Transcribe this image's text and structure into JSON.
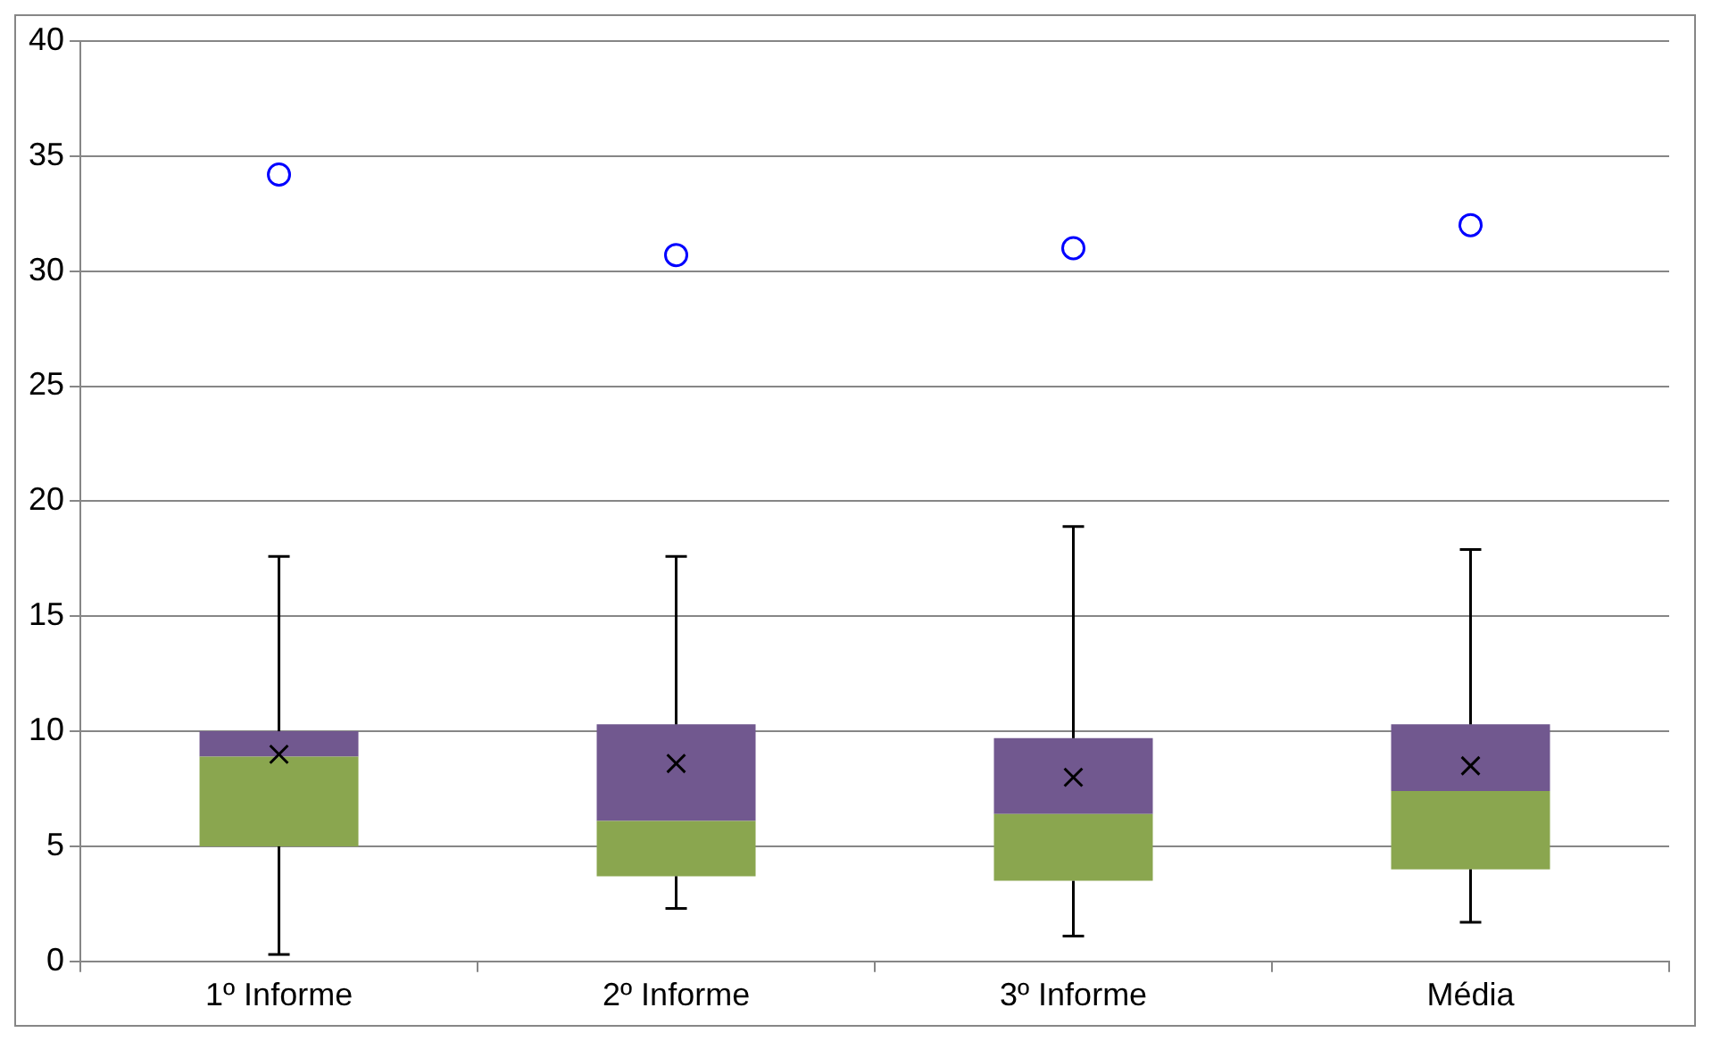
{
  "chart_data": {
    "type": "box",
    "categories": [
      "1º Informe",
      "2º Informe",
      "3º Informe",
      "Média"
    ],
    "boxes": [
      {
        "low": 0.3,
        "q1": 5.0,
        "median": 8.9,
        "q3": 10.0,
        "high": 17.6,
        "mean": 9.0
      },
      {
        "low": 2.3,
        "q1": 3.7,
        "median": 6.1,
        "q3": 10.3,
        "high": 17.6,
        "mean": 8.6
      },
      {
        "low": 1.1,
        "q1": 3.5,
        "median": 6.4,
        "q3": 9.7,
        "high": 18.9,
        "mean": 8.0
      },
      {
        "low": 1.7,
        "q1": 4.0,
        "median": 7.4,
        "q3": 10.3,
        "high": 17.9,
        "mean": 8.5
      }
    ],
    "colors": [
      [
        "#8aa64f",
        "#71588f"
      ],
      [
        "#8aa64f",
        "#71588f"
      ],
      [
        "#8aa64f",
        "#71588f"
      ],
      [
        "#8aa64f",
        "#71588f"
      ]
    ],
    "series": [
      {
        "type": "scatter",
        "x": [
          "1º Informe",
          "2º Informe",
          "3º Informe",
          "Média"
        ],
        "values": [
          34.2,
          30.7,
          31.0,
          32.0
        ],
        "color": "#0000ff"
      }
    ],
    "marker": "circle",
    "ylim": [
      0,
      40
    ],
    "yticks": [
      0,
      5,
      10,
      15,
      20,
      25,
      30,
      35,
      40
    ],
    "grid": "y",
    "legend": false
  }
}
